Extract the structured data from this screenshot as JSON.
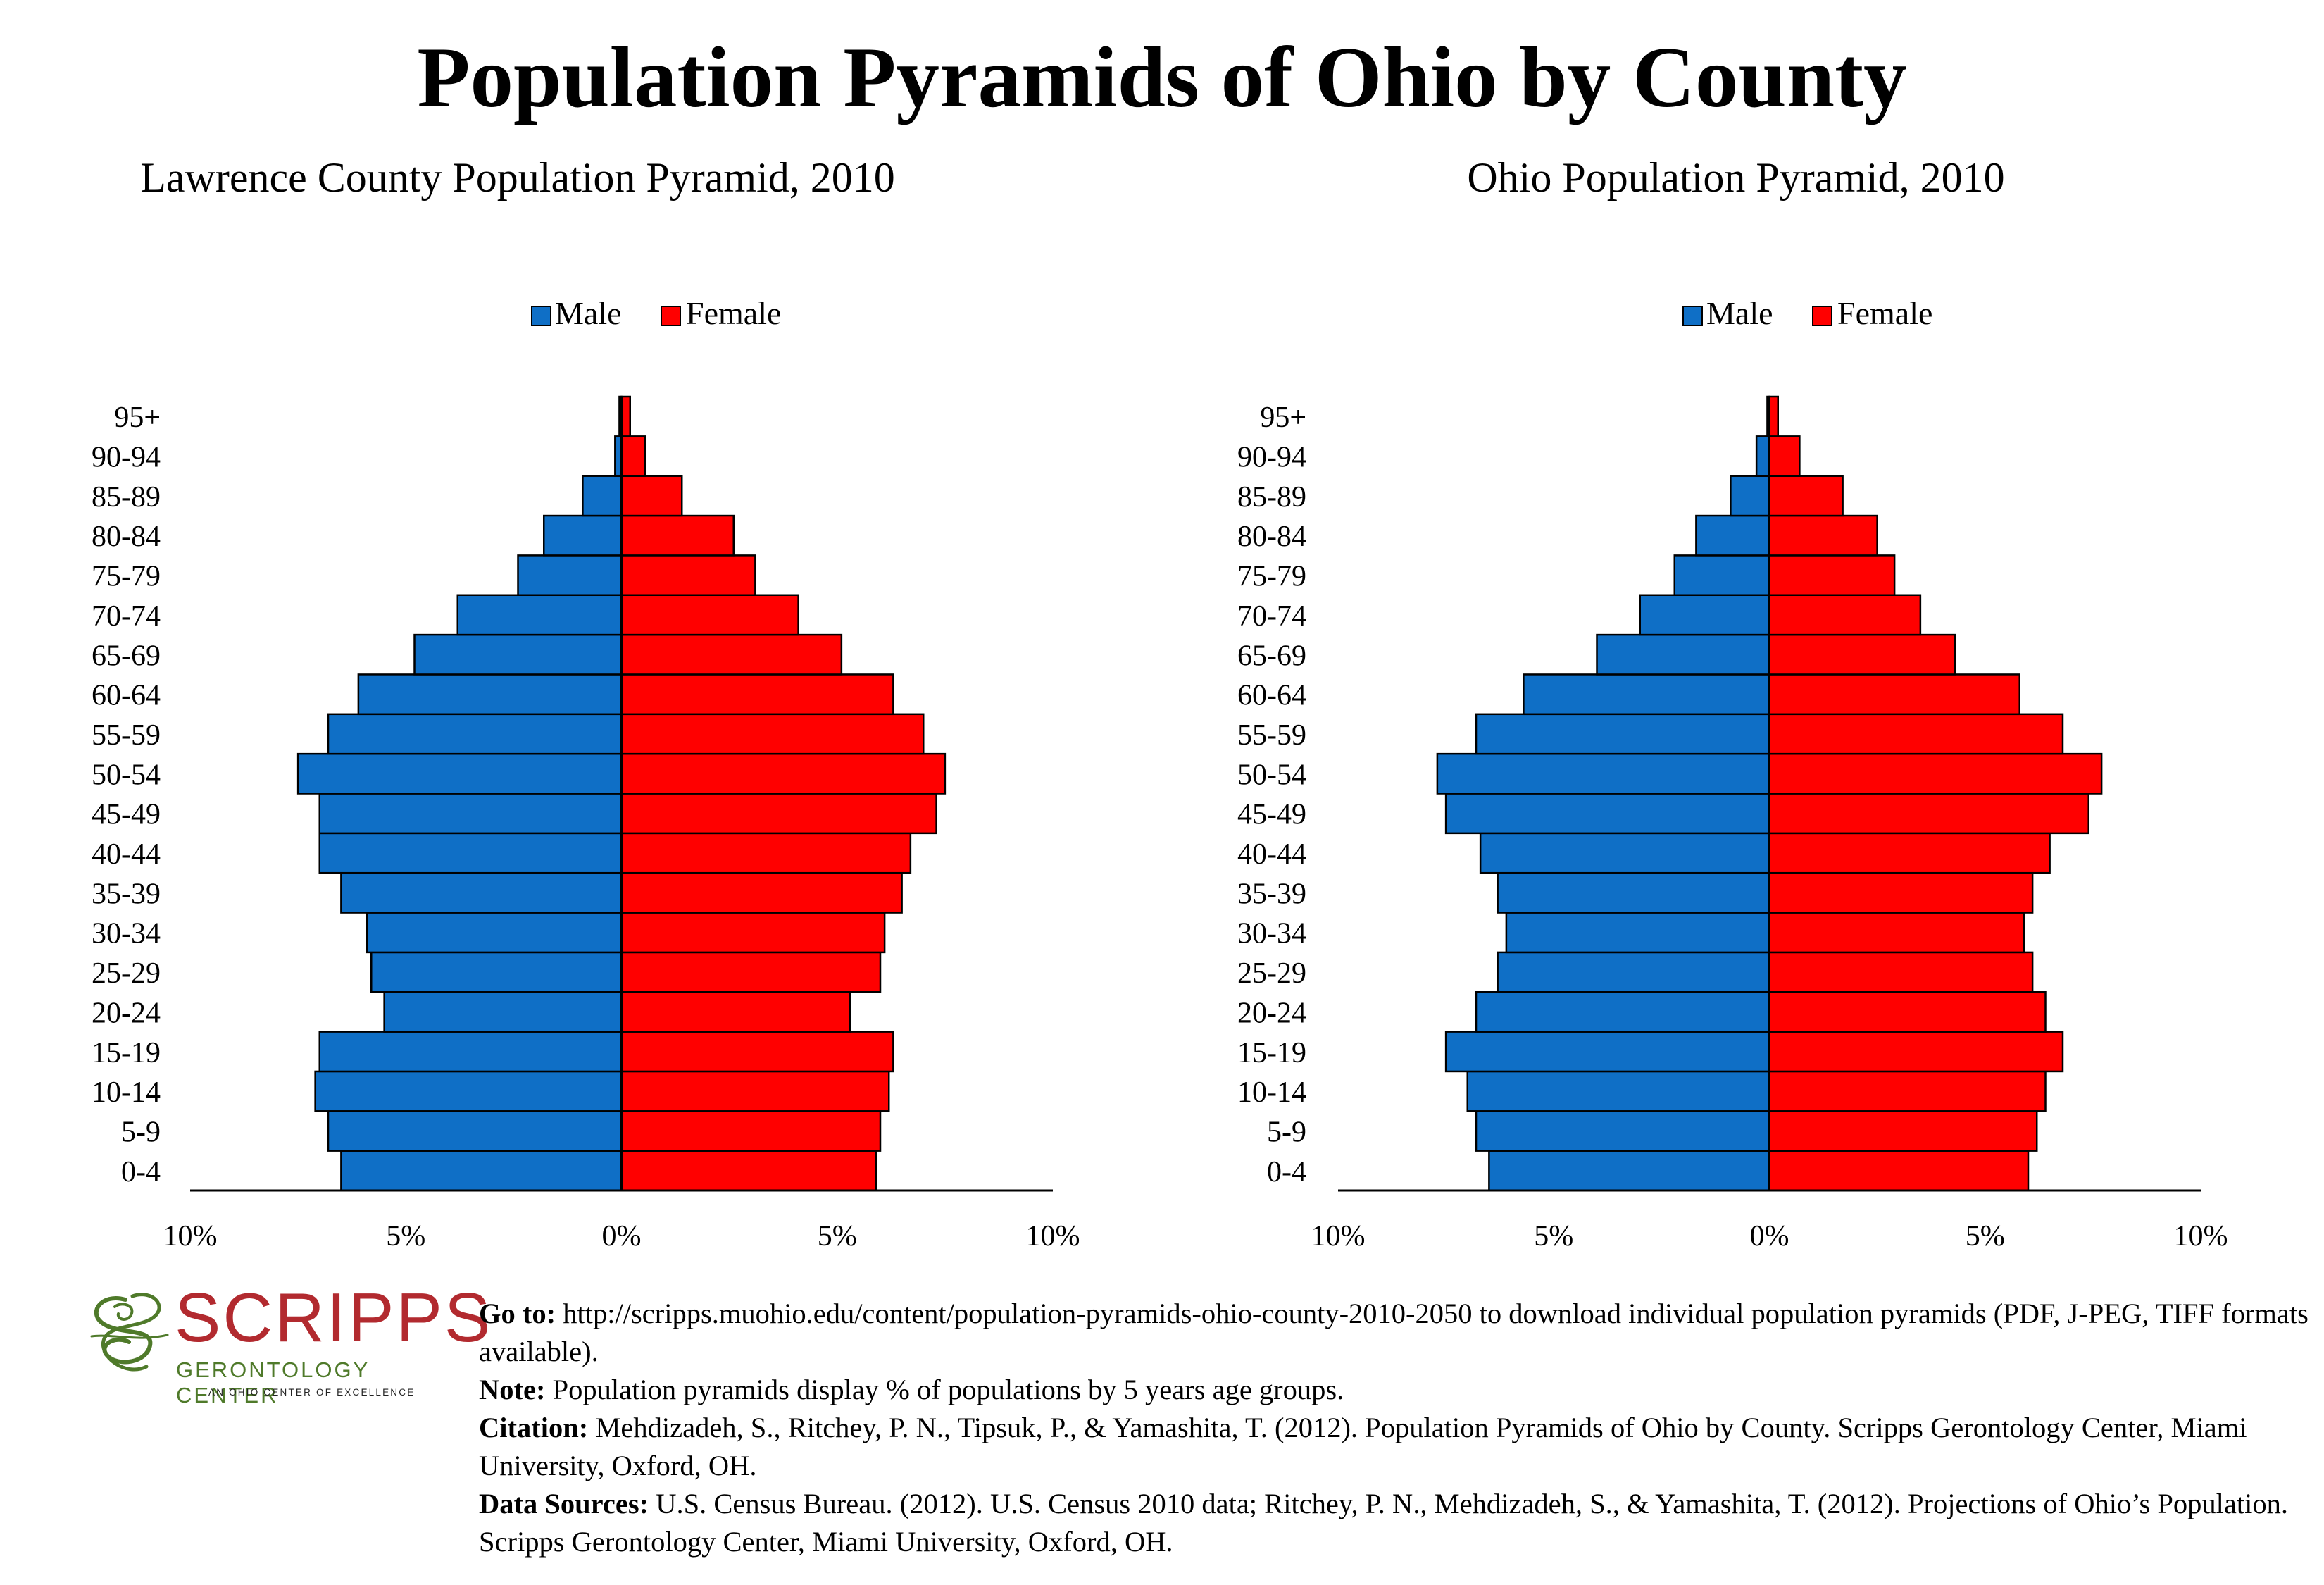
{
  "title": "Population Pyramids of Ohio by County",
  "legend": {
    "male": "Male",
    "female": "Female"
  },
  "colors": {
    "male": "#0f6fc6",
    "female": "#ff0000",
    "outline": "#000000"
  },
  "chart_data": [
    {
      "type": "bar",
      "title": "Lawrence County Population Pyramid, 2010",
      "orientation": "horizontal-pyramid",
      "legend_position": "top-center",
      "grid": false,
      "categories": [
        "0-4",
        "5-9",
        "10-14",
        "15-19",
        "20-24",
        "25-29",
        "30-34",
        "35-39",
        "40-44",
        "45-49",
        "50-54",
        "55-59",
        "60-64",
        "65-69",
        "70-74",
        "75-79",
        "80-84",
        "85-89",
        "90-94",
        "95+"
      ],
      "xlim": [
        -10,
        10
      ],
      "x_tick_labels": [
        "10%",
        "5%",
        "0%",
        "5%",
        "10%"
      ],
      "series": [
        {
          "name": "Male",
          "values": [
            6.5,
            6.8,
            7.1,
            7.0,
            5.5,
            5.8,
            5.9,
            6.5,
            7.0,
            7.0,
            7.5,
            6.8,
            6.1,
            4.8,
            3.8,
            2.4,
            1.8,
            0.9,
            0.15,
            0.05
          ]
        },
        {
          "name": "Female",
          "values": [
            5.9,
            6.0,
            6.2,
            6.3,
            5.3,
            6.0,
            6.1,
            6.5,
            6.7,
            7.3,
            7.5,
            7.0,
            6.3,
            5.1,
            4.1,
            3.1,
            2.6,
            1.4,
            0.55,
            0.2
          ]
        }
      ]
    },
    {
      "type": "bar",
      "title": "Ohio Population Pyramid, 2010",
      "orientation": "horizontal-pyramid",
      "legend_position": "top-center",
      "grid": false,
      "categories": [
        "0-4",
        "5-9",
        "10-14",
        "15-19",
        "20-24",
        "25-29",
        "30-34",
        "35-39",
        "40-44",
        "45-49",
        "50-54",
        "55-59",
        "60-64",
        "65-69",
        "70-74",
        "75-79",
        "80-84",
        "85-89",
        "90-94",
        "95+"
      ],
      "xlim": [
        -10,
        10
      ],
      "x_tick_labels": [
        "10%",
        "5%",
        "0%",
        "5%",
        "10%"
      ],
      "series": [
        {
          "name": "Male",
          "values": [
            6.5,
            6.8,
            7.0,
            7.5,
            6.8,
            6.3,
            6.1,
            6.3,
            6.7,
            7.5,
            7.7,
            6.8,
            5.7,
            4.0,
            3.0,
            2.2,
            1.7,
            0.9,
            0.3,
            0.05
          ]
        },
        {
          "name": "Female",
          "values": [
            6.0,
            6.2,
            6.4,
            6.8,
            6.4,
            6.1,
            5.9,
            6.1,
            6.5,
            7.4,
            7.7,
            6.8,
            5.8,
            4.3,
            3.5,
            2.9,
            2.5,
            1.7,
            0.7,
            0.2
          ]
        }
      ]
    }
  ],
  "notes": [
    {
      "label": "Go to:",
      "text": "http://scripps.muohio.edu/content/population-pyramids-ohio-county-2010-2050 to download individual population pyramids (PDF, J-PEG, TIFF formats available)."
    },
    {
      "label": "Note:",
      "text": "Population pyramids display % of populations by 5 years age groups."
    },
    {
      "label": "Citation:",
      "text": "Mehdizadeh, S., Ritchey, P. N., Tipsuk, P., & Yamashita, T. (2012). Population Pyramids of Ohio by County. Scripps Gerontology Center, Miami University, Oxford, OH."
    },
    {
      "label": "Data Sources:",
      "text": "U.S. Census Bureau. (2012). U.S. Census 2010 data; Ritchey, P. N., Mehdizadeh, S., & Yamashita, T. (2012). Projections of Ohio’s Population. Scripps Gerontology Center, Miami University, Oxford, OH."
    }
  ],
  "logo": {
    "word": "SCRIPPS",
    "sub": "GERONTOLOGY CENTER",
    "tagline": "AN OHIO CENTER OF EXCELLENCE",
    "word_color": "#b22a2f",
    "sub_color": "#4f7a2a",
    "mark_color": "#4f7a2a",
    "icon": "scripps-swirl-logo-icon"
  }
}
